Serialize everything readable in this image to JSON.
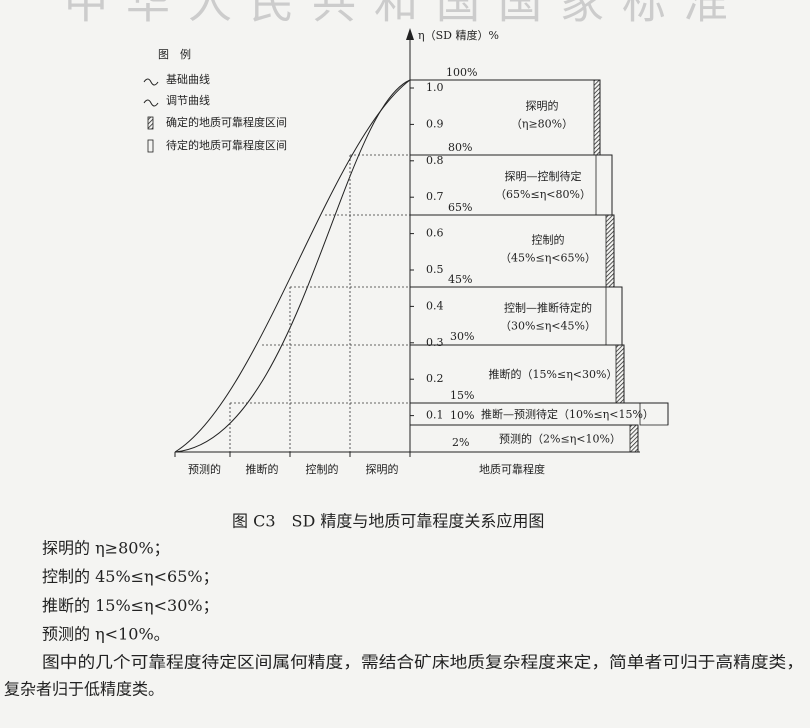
{
  "header": {
    "title": "中华人民共和国国家标准"
  },
  "figure": {
    "legend": {
      "title": "图　例",
      "items": [
        "基础曲线",
        "调节曲线",
        "确定的地质可靠程度区间",
        "待定的地质可靠程度区间"
      ]
    },
    "y_axis_label": "η（SD 精度）%",
    "y_ticks": [
      "1.0",
      "0.9",
      "0.8",
      "0.7",
      "0.6",
      "0.5",
      "0.4",
      "0.3",
      "0.2",
      "0.1"
    ],
    "percent_labels": [
      "100%",
      "80%",
      "65%",
      "45%",
      "30%",
      "15%",
      "10%",
      "2%"
    ],
    "zones": [
      {
        "label": "探明的",
        "range": "（η≥80%）"
      },
      {
        "label": "探明—控制待定",
        "range": "（65%≤η<80%）"
      },
      {
        "label": "控制的",
        "range": "（45%≤η<65%）"
      },
      {
        "label": "控制—推断待定的",
        "range": "（30%≤η<45%）"
      },
      {
        "label": "推断的（15%≤η<30%）"
      },
      {
        "label": "推断—预测待定（10%≤η<15%）"
      },
      {
        "label": "预测的（2%≤η<10%）"
      }
    ],
    "x_categories": [
      "预测的",
      "推断的",
      "控制的",
      "探明的"
    ],
    "x_axis_label": "地质可靠程度",
    "caption": "图 C3　SD 精度与地质可靠程度关系应用图"
  },
  "body": {
    "lines": [
      "探明的 η≥80%；",
      "控制的 45%≤η<65%；",
      "推断的 15%≤η<30%；",
      "预测的 η<10%。"
    ],
    "paragraph": [
      "图中的几个可靠程度待定区间属何精度，需结合矿床地质复杂程度来定，简单者可归于高精度类，",
      "复杂者归于低精度类。"
    ]
  }
}
